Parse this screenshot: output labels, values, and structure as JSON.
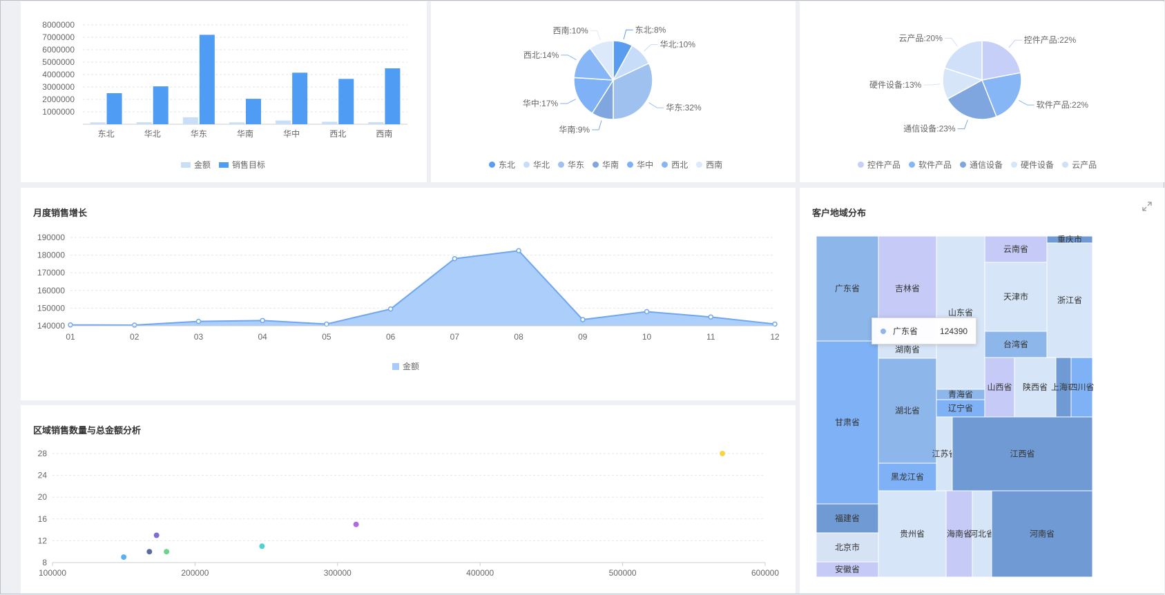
{
  "charts": {
    "bar_region": {
      "legend": [
        "金额",
        "销售目标"
      ],
      "y_ticks": [
        "8000000",
        "7000000",
        "6000000",
        "5000000",
        "4000000",
        "3000000",
        "2000000",
        "1000000"
      ]
    },
    "pie_region": {
      "labels": [
        "东北:8%",
        "华北:10%",
        "华东:32%",
        "华南:9%",
        "华中:17%",
        "西北:14%",
        "西南:10%"
      ],
      "legend": [
        "东北",
        "华北",
        "华东",
        "华南",
        "华中",
        "西北",
        "西南"
      ]
    },
    "pie_product": {
      "labels": [
        "控件产品:22%",
        "软件产品:22%",
        "通信设备:23%",
        "硬件设备:13%",
        "云产品:20%"
      ],
      "legend": [
        "控件产品",
        "软件产品",
        "通信设备",
        "硬件设备",
        "云产品"
      ]
    },
    "monthly": {
      "title": "月度销售增长",
      "legend": "金额",
      "y_ticks": [
        "190000",
        "180000",
        "170000",
        "160000",
        "150000",
        "140000"
      ]
    },
    "scatter": {
      "title": "区域销售数量与总金额分析",
      "y_ticks": [
        "28",
        "24",
        "20",
        "16",
        "12",
        "8"
      ],
      "x_ticks": [
        "100000",
        "200000",
        "300000",
        "400000",
        "500000",
        "600000"
      ]
    },
    "treemap": {
      "title": "客户地域分布",
      "tooltip": {
        "label": "广东省",
        "value": "124390"
      }
    }
  },
  "chart_data": [
    {
      "type": "bar",
      "categories": [
        "东北",
        "华北",
        "华东",
        "华南",
        "华中",
        "西北",
        "西南"
      ],
      "series": [
        {
          "name": "金额",
          "values": [
            150000,
            160000,
            560000,
            150000,
            300000,
            200000,
            170000
          ],
          "color": "#c9dff7"
        },
        {
          "name": "销售目标",
          "values": [
            2500000,
            3050000,
            7200000,
            2050000,
            4150000,
            3650000,
            4500000
          ],
          "color": "#4f9cf5"
        }
      ],
      "ylim": [
        0,
        8000000
      ]
    },
    {
      "type": "pie",
      "categories": [
        "东北",
        "华北",
        "华东",
        "华南",
        "华中",
        "西北",
        "西南"
      ],
      "values": [
        8,
        10,
        32,
        9,
        17,
        14,
        10
      ],
      "colors": [
        "#5a9cf0",
        "#c7dcf8",
        "#9ec1f0",
        "#7fa6de",
        "#7eb1f5",
        "#86b6f5",
        "#dce9fb"
      ]
    },
    {
      "type": "pie",
      "categories": [
        "控件产品",
        "软件产品",
        "通信设备",
        "硬件设备",
        "云产品"
      ],
      "values": [
        22,
        22,
        23,
        13,
        20
      ],
      "colors": [
        "#c5cff7",
        "#86b6f5",
        "#7fa6de",
        "#d6e5f8",
        "#cfe0f8"
      ]
    },
    {
      "type": "area",
      "x": [
        "01",
        "02",
        "03",
        "04",
        "05",
        "06",
        "07",
        "08",
        "09",
        "10",
        "11",
        "12"
      ],
      "series": [
        {
          "name": "金额",
          "values": [
            140500,
            140400,
            142500,
            143000,
            141000,
            149500,
            178000,
            182500,
            143500,
            148000,
            145000,
            141000
          ]
        }
      ],
      "ylim": [
        140000,
        190000
      ],
      "color": "#a8cbfa",
      "line_color": "#6ea6ef"
    },
    {
      "type": "scatter",
      "points": [
        {
          "x": 150000,
          "y": 9,
          "color": "#5ab0f0"
        },
        {
          "x": 168000,
          "y": 10,
          "color": "#5c6b9a"
        },
        {
          "x": 173000,
          "y": 13,
          "color": "#7b6fd6"
        },
        {
          "x": 180000,
          "y": 10,
          "color": "#6dd38a"
        },
        {
          "x": 247000,
          "y": 11,
          "color": "#4fd1d1"
        },
        {
          "x": 313000,
          "y": 15,
          "color": "#b06be0"
        },
        {
          "x": 570000,
          "y": 28,
          "color": "#f5d547"
        }
      ],
      "xlim": [
        100000,
        600000
      ],
      "ylim": [
        8,
        28
      ]
    },
    {
      "type": "table",
      "treemap_cells": [
        {
          "name": "广东省",
          "color": "#8db6ea"
        },
        {
          "name": "甘肃省",
          "color": "#7eb1f5"
        },
        {
          "name": "福建省",
          "color": "#6f9ad3"
        },
        {
          "name": "北京市",
          "color": "#d6e3f5"
        },
        {
          "name": "安徽省",
          "color": "#c5cbf6"
        },
        {
          "name": "吉林省",
          "color": "#c5cbf6"
        },
        {
          "name": "湖南省",
          "color": "#d6e5f8"
        },
        {
          "name": "湖北省",
          "color": "#8db6ea"
        },
        {
          "name": "黑龙江省",
          "color": "#7eb1f5"
        },
        {
          "name": "贵州省",
          "color": "#d6e5f8"
        },
        {
          "name": "山东省",
          "color": "#d6e5f8"
        },
        {
          "name": "青海省",
          "color": "#8db6ea"
        },
        {
          "name": "辽宁省",
          "color": "#7eb1f5"
        },
        {
          "name": "江苏省",
          "color": "#d6e5f8"
        },
        {
          "name": "海南省",
          "color": "#c5cbf6"
        },
        {
          "name": "河北省",
          "color": "#d6e5f8"
        },
        {
          "name": "云南省",
          "color": "#c5cbf6"
        },
        {
          "name": "天津市",
          "color": "#d6e5f8"
        },
        {
          "name": "台湾省",
          "color": "#8db6ea"
        },
        {
          "name": "重庆市",
          "color": "#6f9ad3"
        },
        {
          "name": "浙江省",
          "color": "#d6e5f8"
        },
        {
          "name": "山西省",
          "color": "#c5cbf6"
        },
        {
          "name": "陕西省",
          "color": "#d6e5f8"
        },
        {
          "name": "上海市",
          "color": "#6f9ad3"
        },
        {
          "name": "四川省",
          "color": "#7eb1f5"
        },
        {
          "name": "江西省",
          "color": "#6f9ad3"
        },
        {
          "name": "河南省",
          "color": "#6f9ad3"
        }
      ]
    }
  ]
}
